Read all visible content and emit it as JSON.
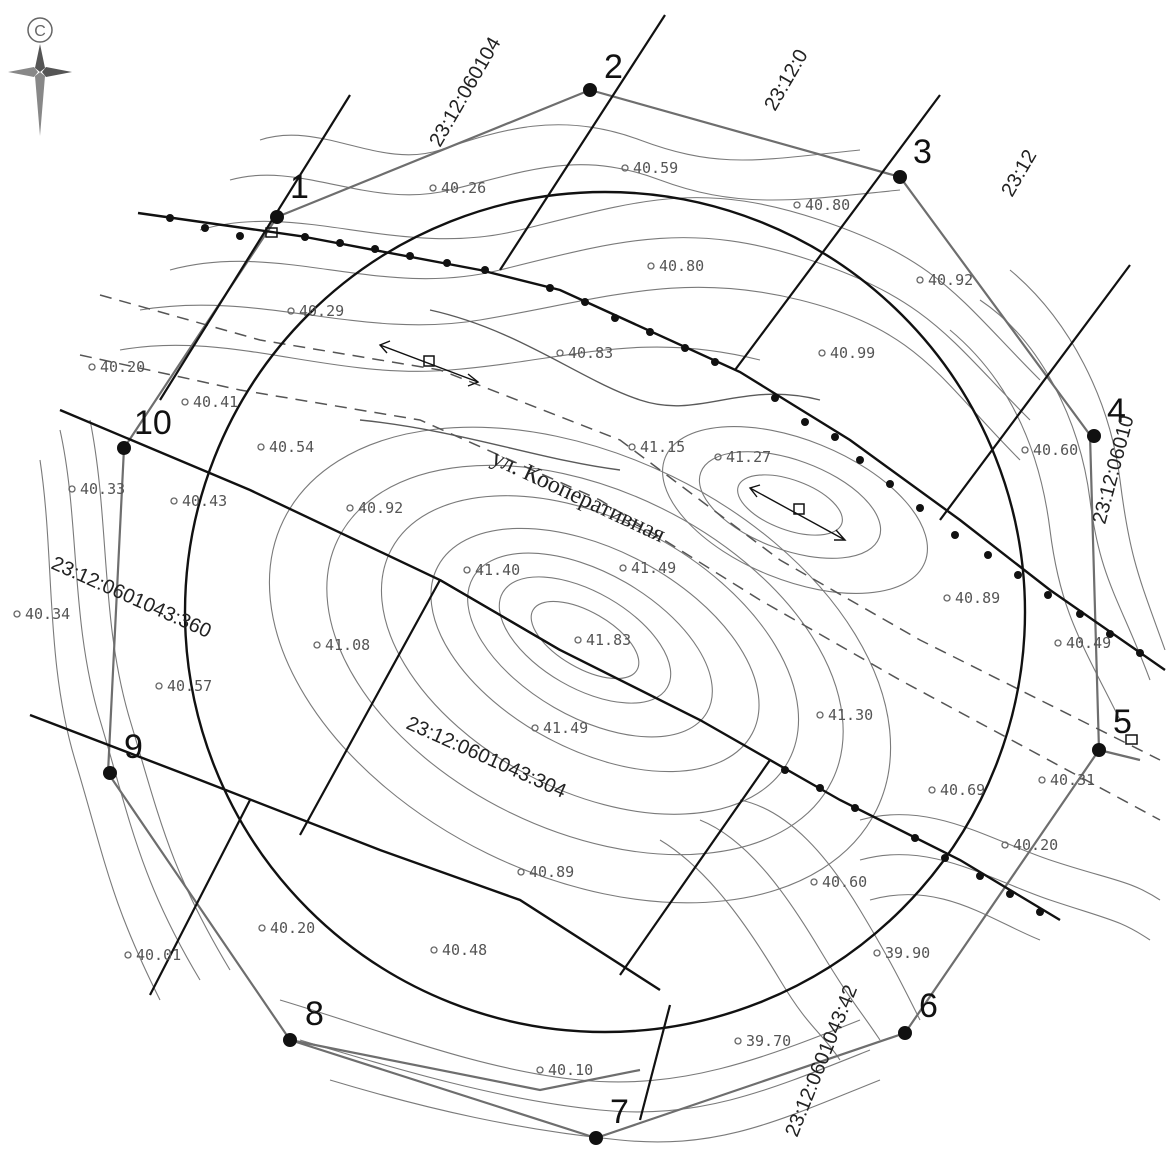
{
  "street_name": "ул. Кооперативная",
  "cadastral_labels": [
    {
      "id": "top-left-parcel",
      "text": "23:12:060104"
    },
    {
      "id": "top-middle-parcel",
      "text": "23:12:0"
    },
    {
      "id": "top-right-parcel",
      "text": "23:12"
    },
    {
      "id": "right-parcel",
      "text": "23:12:06010"
    },
    {
      "id": "west-parcel",
      "text": "23:12:0601043:360"
    },
    {
      "id": "central-parcel",
      "text": "23:12:0601043:304"
    },
    {
      "id": "south-parcel",
      "text": "23:12:0601043:42"
    }
  ],
  "vertices": [
    {
      "label": "1"
    },
    {
      "label": "2"
    },
    {
      "label": "3"
    },
    {
      "label": "4"
    },
    {
      "label": "5"
    },
    {
      "label": "6"
    },
    {
      "label": "7"
    },
    {
      "label": "8"
    },
    {
      "label": "9"
    },
    {
      "label": "10"
    }
  ],
  "spot_heights": [
    "40.26",
    "40.59",
    "40.80",
    "40.80",
    "40.92",
    "40.29",
    "40.83",
    "40.99",
    "40.20",
    "40.41",
    "40.54",
    "41.15",
    "41.27",
    "40.60",
    "40.33",
    "40.43",
    "40.92",
    "41.40",
    "41.49",
    "40.89",
    "40.34",
    "41.08",
    "41.83",
    "40.49",
    "40.57",
    "41.30",
    "41.49",
    "40.69",
    "40.31",
    "40.89",
    "40.60",
    "40.20",
    "40.20",
    "40.48",
    "39.90",
    "40.01",
    "39.70",
    "40.10"
  ],
  "compass": {
    "icon": "compass-rose-icon",
    "copyright_mark": "C"
  }
}
